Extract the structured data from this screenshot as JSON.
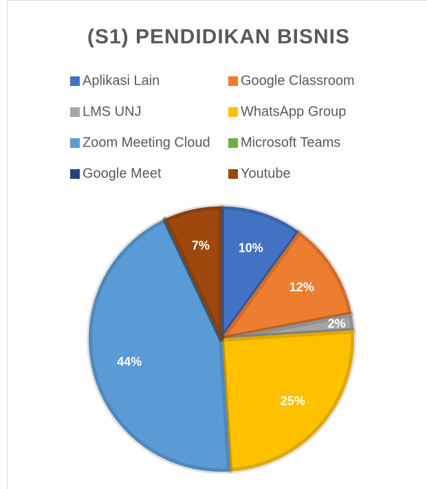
{
  "chart_data": {
    "type": "pie",
    "title": "(S1) PENDIDIKAN BISNIS",
    "categories": [
      "Aplikasi Lain",
      "Google Classroom",
      "LMS UNJ",
      "WhatsApp Group",
      "Zoom Meeting Cloud",
      "Microsoft Teams",
      "Google Meet",
      "Youtube"
    ],
    "values": [
      10,
      12,
      2,
      25,
      44,
      0,
      0,
      7
    ],
    "value_labels": [
      "10%",
      "12%",
      "2%",
      "25%",
      "44%",
      null,
      null,
      "7%"
    ],
    "colors": [
      "#4472c4",
      "#ed7d31",
      "#a5a5a5",
      "#ffc000",
      "#5b9bd5",
      "#70ad47",
      "#264478",
      "#9e480e"
    ],
    "legend": "top"
  }
}
